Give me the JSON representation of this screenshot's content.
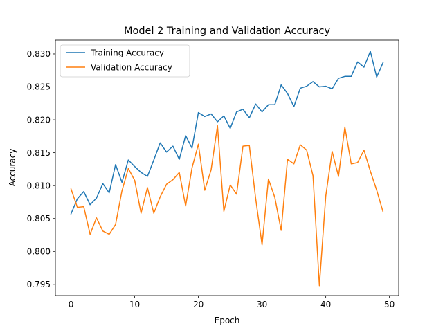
{
  "chart_data": {
    "type": "line",
    "title": "Model 2 Training and Validation Accuracy",
    "xlabel": "Epoch",
    "ylabel": "Accuracy",
    "xlim": [
      -2.45,
      51.45
    ],
    "ylim": [
      0.7933,
      0.8321
    ],
    "xticks": [
      0,
      10,
      20,
      30,
      40,
      50
    ],
    "xtick_labels": [
      "0",
      "10",
      "20",
      "30",
      "40",
      "50"
    ],
    "yticks": [
      0.795,
      0.8,
      0.805,
      0.81,
      0.815,
      0.82,
      0.825,
      0.83
    ],
    "ytick_labels": [
      "0.795",
      "0.800",
      "0.805",
      "0.810",
      "0.815",
      "0.820",
      "0.825",
      "0.830"
    ],
    "grid": false,
    "legend_position": "upper-left",
    "x": [
      0,
      1,
      2,
      3,
      4,
      5,
      6,
      7,
      8,
      9,
      10,
      11,
      12,
      13,
      14,
      15,
      16,
      17,
      18,
      19,
      20,
      21,
      22,
      23,
      24,
      25,
      26,
      27,
      28,
      29,
      30,
      31,
      32,
      33,
      34,
      35,
      36,
      37,
      38,
      39,
      40,
      41,
      42,
      43,
      44,
      45,
      46,
      47,
      48,
      49
    ],
    "series": [
      {
        "name": "Training Accuracy",
        "color": "#1f77b4",
        "values": [
          0.8057,
          0.808,
          0.8091,
          0.8071,
          0.8081,
          0.8103,
          0.8089,
          0.8132,
          0.8105,
          0.8139,
          0.8129,
          0.812,
          0.8114,
          0.8139,
          0.8165,
          0.8151,
          0.816,
          0.814,
          0.8176,
          0.8157,
          0.8211,
          0.8205,
          0.8209,
          0.8197,
          0.8206,
          0.8187,
          0.8212,
          0.8216,
          0.8203,
          0.8224,
          0.8212,
          0.8223,
          0.8223,
          0.8253,
          0.824,
          0.822,
          0.8248,
          0.8251,
          0.8258,
          0.825,
          0.8251,
          0.8247,
          0.8263,
          0.8266,
          0.8266,
          0.8288,
          0.828,
          0.8304,
          0.8265,
          0.8287
        ]
      },
      {
        "name": "Validation Accuracy",
        "color": "#ff7f0e",
        "values": [
          0.8095,
          0.8067,
          0.8068,
          0.8026,
          0.8051,
          0.8031,
          0.8026,
          0.8041,
          0.8092,
          0.8126,
          0.8108,
          0.8058,
          0.8097,
          0.8058,
          0.8083,
          0.8102,
          0.8109,
          0.812,
          0.8069,
          0.8127,
          0.8163,
          0.8093,
          0.8124,
          0.8191,
          0.8061,
          0.8101,
          0.8087,
          0.816,
          0.8161,
          0.808,
          0.801,
          0.811,
          0.8082,
          0.8032,
          0.814,
          0.8133,
          0.8162,
          0.8154,
          0.8115,
          0.7948,
          0.8084,
          0.8152,
          0.8114,
          0.8189,
          0.8133,
          0.8135,
          0.8154,
          0.8122,
          0.8093,
          0.806
        ]
      }
    ]
  }
}
